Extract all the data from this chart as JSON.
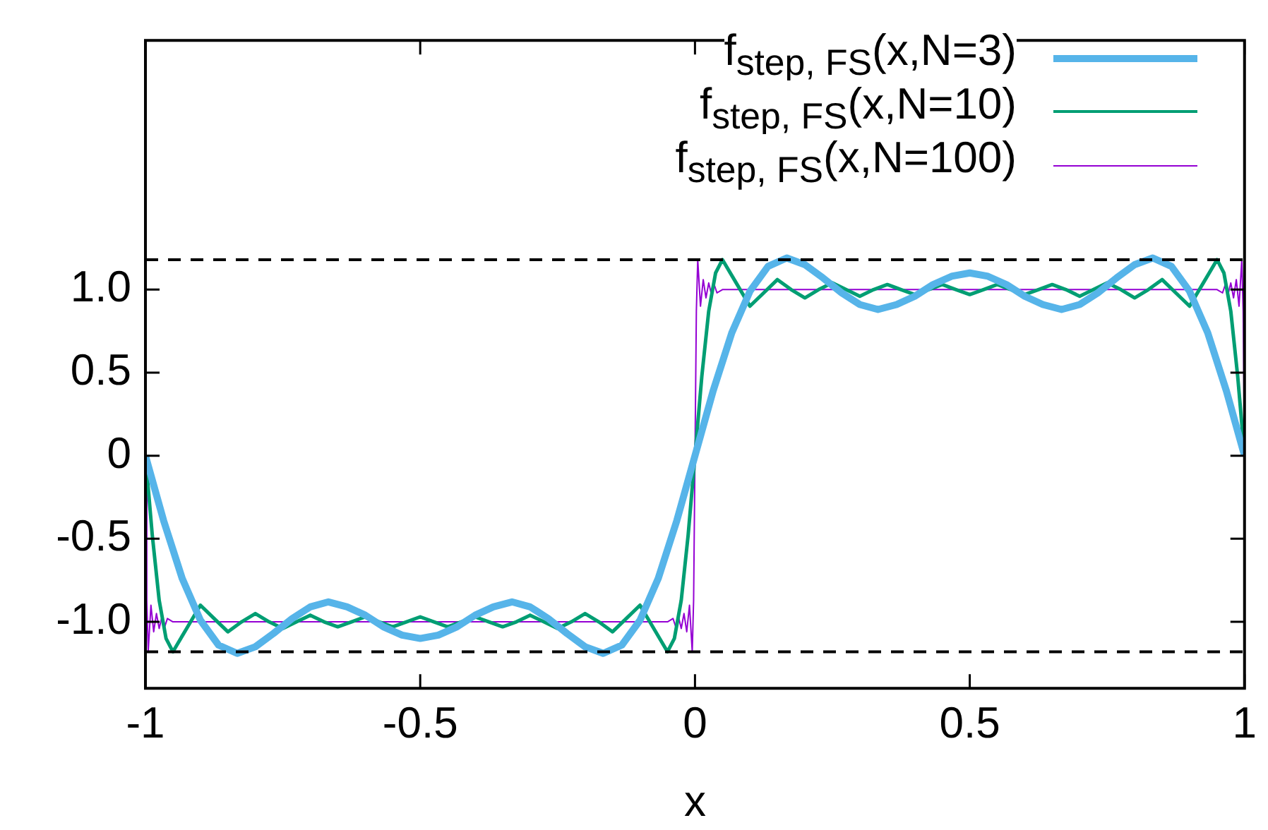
{
  "chart_data": {
    "type": "line",
    "xlabel": "x",
    "xlim": [
      -1,
      1
    ],
    "xticks": [
      {
        "value": -1,
        "label": "-1"
      },
      {
        "value": -0.5,
        "label": "-0.5"
      },
      0,
      0.5,
      1
    ],
    "ylim": [
      -1.4,
      2.5
    ],
    "yticks": [
      {
        "value": -1,
        "label": "-1.0"
      },
      -0.5,
      0,
      0.5,
      {
        "value": 1,
        "label": "1.0"
      }
    ],
    "grid": false,
    "legend": "top right",
    "marker": "none",
    "line_style": "solid",
    "ref_lines": [
      {
        "axis": "y",
        "value": 1.18,
        "color": "#000000",
        "line_style": "dashed"
      },
      {
        "axis": "y",
        "value": -1.18,
        "color": "#000000",
        "line_style": "dashed"
      }
    ],
    "series": [
      {
        "name": "f$_{step, FS}$(x,N=3)",
        "color": "#56b4e9",
        "x": [
          -1,
          -0.967,
          -0.933,
          -0.9,
          -0.867,
          -0.833,
          -0.8,
          -0.767,
          -0.733,
          -0.7,
          -0.667,
          -0.633,
          -0.6,
          -0.567,
          -0.533,
          -0.5,
          -0.467,
          -0.433,
          -0.4,
          -0.367,
          -0.333,
          -0.3,
          -0.267,
          -0.233,
          -0.2,
          -0.167,
          -0.133,
          -0.1,
          -0.067,
          -0.033,
          0,
          0.033,
          0.067,
          0.1,
          0.133,
          0.167,
          0.2,
          0.233,
          0.267,
          0.3,
          0.333,
          0.367,
          0.4,
          0.433,
          0.467,
          0.5,
          0.533,
          0.567,
          0.6,
          0.633,
          0.667,
          0.7,
          0.733,
          0.767,
          0.8,
          0.833,
          0.867,
          0.9,
          0.933,
          0.967,
          1
        ],
        "values": [
          0,
          -0.39,
          -0.74,
          -0.99,
          -1.14,
          -1.19,
          -1.15,
          -1.07,
          -0.98,
          -0.91,
          -0.88,
          -0.91,
          -0.96,
          -1.03,
          -1.08,
          -1.1,
          -1.08,
          -1.03,
          -0.96,
          -0.91,
          -0.88,
          -0.91,
          -0.98,
          -1.07,
          -1.15,
          -1.19,
          -1.14,
          -0.99,
          -0.74,
          -0.39,
          0,
          0.39,
          0.74,
          0.99,
          1.14,
          1.19,
          1.15,
          1.07,
          0.98,
          0.91,
          0.88,
          0.91,
          0.96,
          1.03,
          1.08,
          1.1,
          1.08,
          1.03,
          0.96,
          0.91,
          0.88,
          0.91,
          0.98,
          1.07,
          1.15,
          1.19,
          1.14,
          0.99,
          0.74,
          0.39,
          0
        ]
      },
      {
        "name": "f$_{step, FS}$(x,N=10)",
        "color": "#009e73",
        "x": [
          -1,
          -0.9875,
          -0.975,
          -0.9625,
          -0.95,
          -0.925,
          -0.9,
          -0.875,
          -0.85,
          -0.825,
          -0.8,
          -0.775,
          -0.75,
          -0.725,
          -0.7,
          -0.675,
          -0.65,
          -0.625,
          -0.6,
          -0.575,
          -0.55,
          -0.525,
          -0.5,
          -0.475,
          -0.45,
          -0.425,
          -0.4,
          -0.375,
          -0.35,
          -0.325,
          -0.3,
          -0.275,
          -0.25,
          -0.225,
          -0.2,
          -0.175,
          -0.15,
          -0.125,
          -0.1,
          -0.075,
          -0.05,
          -0.0375,
          -0.025,
          -0.0125,
          0,
          0.0125,
          0.025,
          0.0375,
          0.05,
          0.075,
          0.1,
          0.125,
          0.15,
          0.175,
          0.2,
          0.225,
          0.25,
          0.275,
          0.3,
          0.325,
          0.35,
          0.375,
          0.4,
          0.425,
          0.45,
          0.475,
          0.5,
          0.525,
          0.55,
          0.575,
          0.6,
          0.625,
          0.65,
          0.675,
          0.7,
          0.725,
          0.75,
          0.775,
          0.8,
          0.825,
          0.85,
          0.875,
          0.9,
          0.925,
          0.95,
          0.9625,
          0.975,
          0.9875,
          1
        ],
        "values": [
          0,
          -0.48,
          -0.87,
          -1.1,
          -1.18,
          -1.04,
          -0.9,
          -0.98,
          -1.06,
          -1.0,
          -0.95,
          -1.0,
          -1.04,
          -1.0,
          -0.96,
          -1.0,
          -1.03,
          -1.0,
          -0.97,
          -1.0,
          -1.03,
          -1.0,
          -0.97,
          -1.0,
          -1.03,
          -1.0,
          -0.97,
          -1.0,
          -1.03,
          -1.0,
          -0.96,
          -1.0,
          -1.04,
          -1.0,
          -0.95,
          -1.0,
          -1.06,
          -0.98,
          -0.9,
          -1.04,
          -1.18,
          -1.1,
          -0.87,
          -0.48,
          0,
          0.48,
          0.87,
          1.1,
          1.18,
          1.04,
          0.9,
          0.98,
          1.06,
          1.0,
          0.95,
          1.0,
          1.04,
          1.0,
          0.96,
          1.0,
          1.03,
          1.0,
          0.97,
          1.0,
          1.03,
          1.0,
          0.97,
          1.0,
          1.03,
          1.0,
          0.97,
          1.0,
          1.03,
          1.0,
          0.96,
          1.0,
          1.04,
          1.0,
          0.95,
          1.0,
          1.06,
          0.98,
          0.9,
          1.04,
          1.18,
          1.1,
          0.87,
          0.48,
          0
        ]
      },
      {
        "name": "f$_{step, FS}$(x,N=100)",
        "color": "#9400d3",
        "x": [
          -1,
          -0.9975,
          -0.995,
          -0.9925,
          -0.99,
          -0.985,
          -0.98,
          -0.975,
          -0.97,
          -0.965,
          -0.96,
          -0.95,
          -0.5,
          -0.05,
          -0.04,
          -0.035,
          -0.03,
          -0.025,
          -0.02,
          -0.015,
          -0.01,
          -0.0075,
          -0.005,
          -0.0025,
          0,
          0.0025,
          0.005,
          0.0075,
          0.01,
          0.015,
          0.02,
          0.025,
          0.03,
          0.035,
          0.04,
          0.05,
          0.5,
          0.95,
          0.96,
          0.965,
          0.97,
          0.975,
          0.98,
          0.985,
          0.99,
          0.9925,
          0.995,
          0.9975,
          1
        ],
        "values": [
          0,
          -0.87,
          -1.18,
          -1.04,
          -0.9,
          -1.06,
          -0.95,
          -1.04,
          -0.97,
          -1.03,
          -0.98,
          -1.0,
          -1.0,
          -1.0,
          -0.98,
          -1.03,
          -0.97,
          -1.04,
          -0.95,
          -1.06,
          -0.9,
          -1.04,
          -1.18,
          -0.87,
          0,
          0.87,
          1.18,
          1.04,
          0.9,
          1.06,
          0.95,
          1.04,
          0.97,
          1.03,
          0.98,
          1.0,
          1.0,
          1.0,
          0.98,
          1.03,
          0.97,
          1.04,
          0.95,
          1.06,
          0.9,
          1.04,
          1.18,
          0.87,
          0
        ]
      }
    ]
  }
}
